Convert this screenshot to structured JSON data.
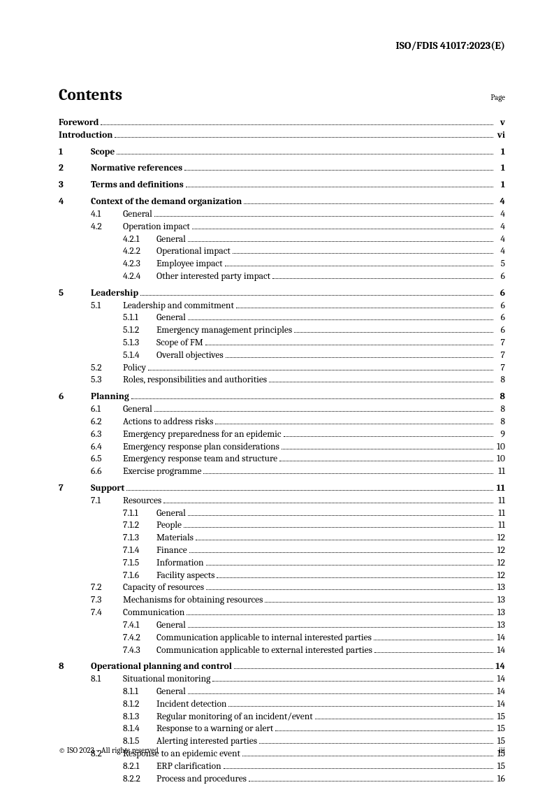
{
  "header": "ISO/FDIS 41017:2023(E)",
  "contentsTitle": "Contents",
  "pageLabel": "Page",
  "footerLeft": "© ISO 2023 – All rights reserved",
  "footerRight": "iii",
  "entries": [
    {
      "level": 0,
      "num": "",
      "title": "Foreword",
      "page": "v",
      "bold": true
    },
    {
      "level": 0,
      "num": "",
      "title": "Introduction",
      "page": "vi",
      "bold": true
    },
    {
      "level": 0,
      "num": "1",
      "title": "Scope",
      "page": "1",
      "bold": true,
      "gap": true
    },
    {
      "level": 0,
      "num": "2",
      "title": "Normative references",
      "page": "1",
      "bold": true,
      "gap": true
    },
    {
      "level": 0,
      "num": "3",
      "title": "Terms and definitions",
      "page": "1",
      "bold": true,
      "gap": true
    },
    {
      "level": 0,
      "num": "4",
      "title": "Context of the demand organization",
      "page": "4",
      "bold": true,
      "gap": true
    },
    {
      "level": 1,
      "num": "4.1",
      "title": "General",
      "page": "4"
    },
    {
      "level": 1,
      "num": "4.2",
      "title": "Operation impact",
      "page": "4"
    },
    {
      "level": 2,
      "num": "4.2.1",
      "title": "General",
      "page": "4"
    },
    {
      "level": 2,
      "num": "4.2.2",
      "title": "Operational impact",
      "page": "4"
    },
    {
      "level": 2,
      "num": "4.2.3",
      "title": "Employee impact",
      "page": "5"
    },
    {
      "level": 2,
      "num": "4.2.4",
      "title": "Other interested party impact",
      "page": "6"
    },
    {
      "level": 0,
      "num": "5",
      "title": "Leadership",
      "page": "6",
      "bold": true,
      "gap": true
    },
    {
      "level": 1,
      "num": "5.1",
      "title": "Leadership and commitment",
      "page": "6"
    },
    {
      "level": 2,
      "num": "5.1.1",
      "title": "General",
      "page": "6"
    },
    {
      "level": 2,
      "num": "5.1.2",
      "title": "Emergency management principles",
      "page": "6"
    },
    {
      "level": 2,
      "num": "5.1.3",
      "title": "Scope of FM",
      "page": "7"
    },
    {
      "level": 2,
      "num": "5.1.4",
      "title": "Overall objectives",
      "page": "7"
    },
    {
      "level": 1,
      "num": "5.2",
      "title": "Policy",
      "page": "7"
    },
    {
      "level": 1,
      "num": "5.3",
      "title": "Roles, responsibilities and authorities",
      "page": "8"
    },
    {
      "level": 0,
      "num": "6",
      "title": "Planning",
      "page": "8",
      "bold": true,
      "gap": true
    },
    {
      "level": 1,
      "num": "6.1",
      "title": "General",
      "page": "8"
    },
    {
      "level": 1,
      "num": "6.2",
      "title": "Actions to address risks",
      "page": "8"
    },
    {
      "level": 1,
      "num": "6.3",
      "title": "Emergency preparedness for an epidemic",
      "page": "9"
    },
    {
      "level": 1,
      "num": "6.4",
      "title": "Emergency response plan considerations",
      "page": "10"
    },
    {
      "level": 1,
      "num": "6.5",
      "title": "Emergency response team and structure",
      "page": "10"
    },
    {
      "level": 1,
      "num": "6.6",
      "title": "Exercise programme",
      "page": "11"
    },
    {
      "level": 0,
      "num": "7",
      "title": "Support",
      "page": "11",
      "bold": true,
      "gap": true
    },
    {
      "level": 1,
      "num": "7.1",
      "title": "Resources",
      "page": "11"
    },
    {
      "level": 2,
      "num": "7.1.1",
      "title": "General",
      "page": "11"
    },
    {
      "level": 2,
      "num": "7.1.2",
      "title": "People",
      "page": "11"
    },
    {
      "level": 2,
      "num": "7.1.3",
      "title": "Materials",
      "page": "12"
    },
    {
      "level": 2,
      "num": "7.1.4",
      "title": "Finance",
      "page": "12"
    },
    {
      "level": 2,
      "num": "7.1.5",
      "title": "Information",
      "page": "12"
    },
    {
      "level": 2,
      "num": "7.1.6",
      "title": "Facility aspects",
      "page": "12"
    },
    {
      "level": 1,
      "num": "7.2",
      "title": "Capacity of resources",
      "page": "13"
    },
    {
      "level": 1,
      "num": "7.3",
      "title": "Mechanisms for obtaining resources",
      "page": "13"
    },
    {
      "level": 1,
      "num": "7.4",
      "title": "Communication",
      "page": "13"
    },
    {
      "level": 2,
      "num": "7.4.1",
      "title": "General",
      "page": "13"
    },
    {
      "level": 2,
      "num": "7.4.2",
      "title": "Communication applicable to internal interested parties",
      "page": "14"
    },
    {
      "level": 2,
      "num": "7.4.3",
      "title": "Communication applicable to external interested parties",
      "page": "14"
    },
    {
      "level": 0,
      "num": "8",
      "title": "Operational planning and control",
      "page": "14",
      "bold": true,
      "gap": true
    },
    {
      "level": 1,
      "num": "8.1",
      "title": "Situational monitoring",
      "page": "14"
    },
    {
      "level": 2,
      "num": "8.1.1",
      "title": "General",
      "page": "14"
    },
    {
      "level": 2,
      "num": "8.1.2",
      "title": "Incident detection",
      "page": "14"
    },
    {
      "level": 2,
      "num": "8.1.3",
      "title": "Regular monitoring of an incident/event",
      "page": "15"
    },
    {
      "level": 2,
      "num": "8.1.4",
      "title": "Response to a warning or alert",
      "page": "15"
    },
    {
      "level": 2,
      "num": "8.1.5",
      "title": "Alerting interested parties",
      "page": "15"
    },
    {
      "level": 1,
      "num": "8.2",
      "title": "Response to an epidemic event",
      "page": "15"
    },
    {
      "level": 2,
      "num": "8.2.1",
      "title": "ERP clarification",
      "page": "15"
    },
    {
      "level": 2,
      "num": "8.2.2",
      "title": "Process and procedures",
      "page": "16"
    }
  ]
}
